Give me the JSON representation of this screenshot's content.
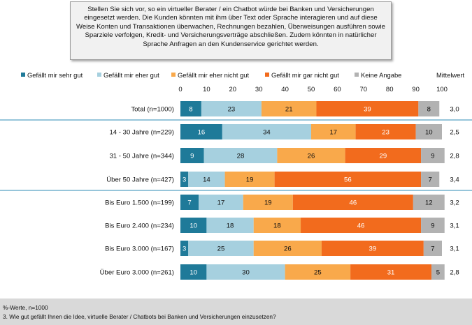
{
  "question_text": "Stellen Sie sich vor, so ein virtueller Berater / ein Chatbot würde bei Banken und Versicherungen eingesetzt werden. Die Kunden könnten mit ihm über Text oder Sprache interagieren und auf diese Weise Konten und Transaktionen überwachen, Rechnungen bezahlen, Überweisungen ausführen sowie Sparziele verfolgen, Kredit- und Versicherungsverträge abschließen. Zudem könnten in natürlicher Sprache Anfragen an den Kundenservice gerichtet werden.",
  "mittelwert_label": "Mittelwert",
  "footer": {
    "note": "%-Werte, n=1000",
    "question": "3. Wie gut gefällt Ihnen die Idee, virtuelle Berater / Chatbots bei Banken und Versicherungen einzusetzen?"
  },
  "chart_data": {
    "type": "bar",
    "orientation": "horizontal",
    "stacked": true,
    "xlim": [
      0,
      100
    ],
    "x_ticks": [
      0,
      10,
      20,
      30,
      40,
      50,
      60,
      70,
      80,
      90,
      100
    ],
    "legend_position": "top",
    "categories": [
      "Total (n=1000)",
      "14 - 30 Jahre (n=229)",
      "31 - 50 Jahre (n=344)",
      "Über 50 Jahre (n=427)",
      "Bis Euro 1.500 (n=199)",
      "Bis Euro 2.400 (n=234)",
      "Bis Euro 3.000 (n=167)",
      "Über Euro 3.000 (n=261)"
    ],
    "series": [
      {
        "name": "Gefällt mir sehr gut",
        "color": "#1f7a99",
        "values": [
          8,
          16,
          9,
          3,
          7,
          10,
          3,
          10
        ]
      },
      {
        "name": "Gefällt mir eher gut",
        "color": "#a6d0df",
        "values": [
          23,
          34,
          28,
          14,
          17,
          18,
          25,
          30
        ]
      },
      {
        "name": "Gefällt mir eher nicht gut",
        "color": "#f9a94b",
        "values": [
          21,
          17,
          26,
          19,
          19,
          18,
          26,
          25
        ]
      },
      {
        "name": "Gefällt mir gar nicht gut",
        "color": "#f26b1d",
        "values": [
          39,
          23,
          29,
          56,
          46,
          46,
          39,
          31
        ]
      },
      {
        "name": "Keine Angabe",
        "color": "#b2b2b2",
        "values": [
          8,
          10,
          9,
          7,
          12,
          9,
          7,
          5
        ]
      }
    ],
    "mittelwert": [
      "3,0",
      "2,5",
      "2,8",
      "3,4",
      "3,2",
      "3,1",
      "3,1",
      "2,8"
    ],
    "group_separators_after": [
      0,
      3
    ],
    "separator_color": "#2e8bb5"
  }
}
